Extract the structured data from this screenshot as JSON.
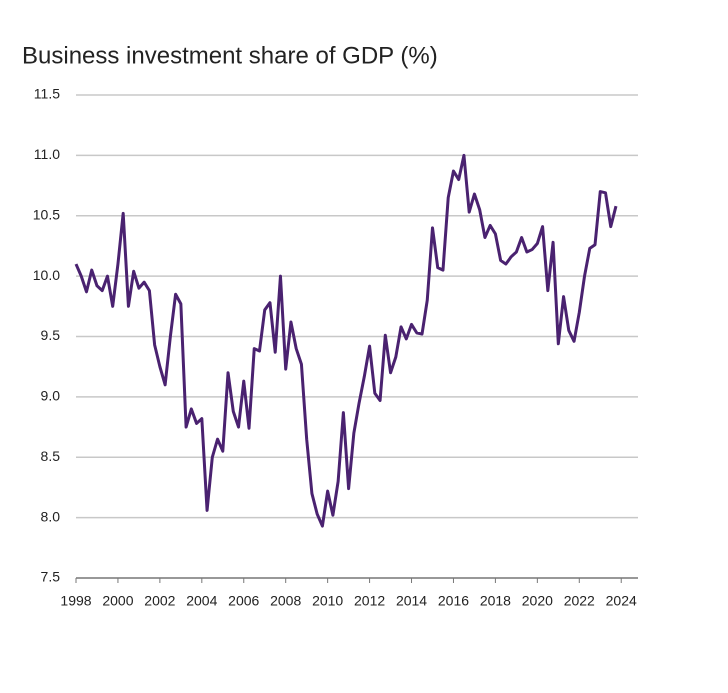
{
  "chart_data": {
    "type": "line",
    "title": "Business investment share of GDP (%)",
    "x": [
      1998,
      1998.25,
      1998.5,
      1998.75,
      1999,
      1999.25,
      1999.5,
      1999.75,
      2000,
      2000.25,
      2000.5,
      2000.75,
      2001,
      2001.25,
      2001.5,
      2001.75,
      2002,
      2002.25,
      2002.5,
      2002.75,
      2003,
      2003.25,
      2003.5,
      2003.75,
      2004,
      2004.25,
      2004.5,
      2004.75,
      2005,
      2005.25,
      2005.5,
      2005.75,
      2006,
      2006.25,
      2006.5,
      2006.75,
      2007,
      2007.25,
      2007.5,
      2007.75,
      2008,
      2008.25,
      2008.5,
      2008.75,
      2009,
      2009.25,
      2009.5,
      2009.75,
      2010,
      2010.25,
      2010.5,
      2010.75,
      2011,
      2011.25,
      2011.5,
      2011.75,
      2012,
      2012.25,
      2012.5,
      2012.75,
      2013,
      2013.25,
      2013.5,
      2013.75,
      2014,
      2014.25,
      2014.5,
      2014.75,
      2015,
      2015.25,
      2015.5,
      2015.75,
      2016,
      2016.25,
      2016.5,
      2016.75,
      2017,
      2017.25,
      2017.5,
      2017.75,
      2018,
      2018.25,
      2018.5,
      2018.75,
      2019,
      2019.25,
      2019.5,
      2019.75,
      2020,
      2020.25,
      2020.5,
      2020.75,
      2021,
      2021.25,
      2021.5,
      2021.75,
      2022,
      2022.25,
      2022.5,
      2022.75,
      2023,
      2023.25,
      2023.5,
      2023.75
    ],
    "series": [
      {
        "name": "Business investment share of GDP",
        "color": "#4a2270",
        "values": [
          10.1,
          10.0,
          9.87,
          10.05,
          9.92,
          9.88,
          10.0,
          9.75,
          10.1,
          10.52,
          9.75,
          10.04,
          9.9,
          9.95,
          9.88,
          9.43,
          9.25,
          9.1,
          9.5,
          9.85,
          9.77,
          8.75,
          8.9,
          8.78,
          8.82,
          8.06,
          8.5,
          8.65,
          8.55,
          9.2,
          8.88,
          8.75,
          9.13,
          8.74,
          9.4,
          9.38,
          9.72,
          9.78,
          9.37,
          10.0,
          9.23,
          9.62,
          9.4,
          9.27,
          8.65,
          8.2,
          8.03,
          7.93,
          8.22,
          8.02,
          8.3,
          8.87,
          8.24,
          8.7,
          8.95,
          9.17,
          9.42,
          9.03,
          8.97,
          9.51,
          9.2,
          9.33,
          9.58,
          9.48,
          9.6,
          9.53,
          9.52,
          9.8,
          10.4,
          10.07,
          10.05,
          10.65,
          10.87,
          10.8,
          11.0,
          10.53,
          10.68,
          10.55,
          10.32,
          10.42,
          10.35,
          10.13,
          10.1,
          10.16,
          10.2,
          10.32,
          10.2,
          10.22,
          10.27,
          10.41,
          9.88,
          10.28,
          9.44,
          9.83,
          9.55,
          9.46,
          9.7,
          10.0,
          10.23,
          10.26,
          10.7,
          10.69,
          10.41,
          10.58
        ]
      }
    ],
    "xlim": [
      1998,
      2024.8
    ],
    "ylim": [
      7.5,
      11.5
    ],
    "xticks": [
      1998,
      2000,
      2002,
      2004,
      2006,
      2008,
      2010,
      2012,
      2014,
      2016,
      2018,
      2020,
      2022,
      2024
    ],
    "yticks": [
      7.5,
      {
        "value": 8,
        "label": "8.0"
      },
      8.5,
      {
        "value": 9,
        "label": "9.0"
      },
      9.5,
      {
        "value": 10,
        "label": "10.0"
      },
      10.5,
      {
        "value": 11,
        "label": "11.0"
      },
      11.5
    ],
    "grid": true
  }
}
